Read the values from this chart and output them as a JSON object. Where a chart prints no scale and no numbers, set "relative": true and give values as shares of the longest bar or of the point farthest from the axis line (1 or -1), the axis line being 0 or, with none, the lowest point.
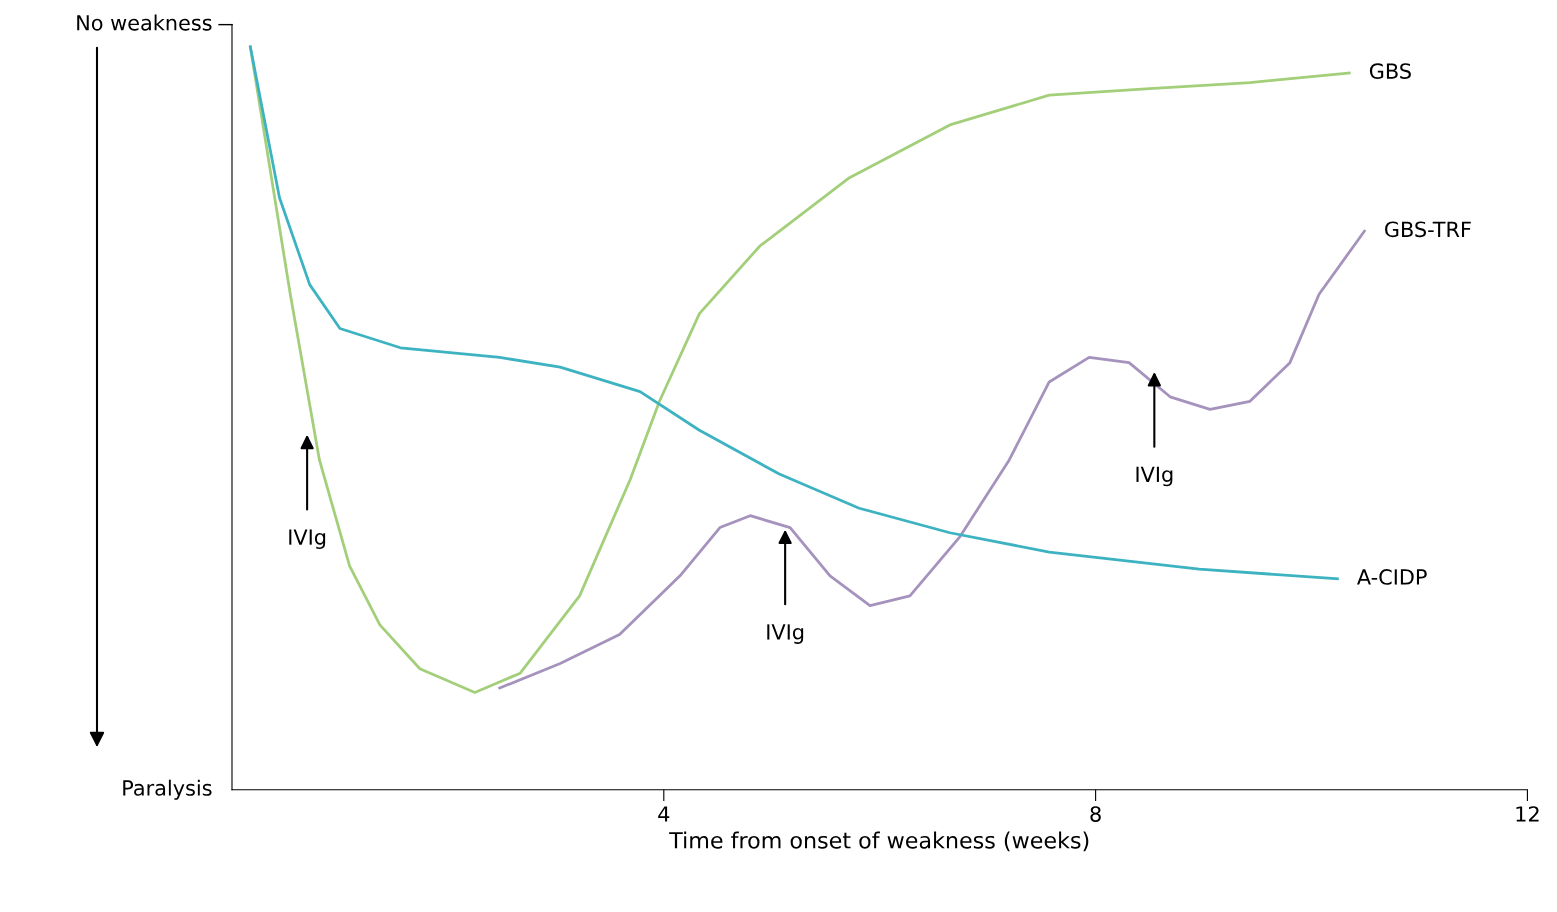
{
  "chart_data": {
    "type": "line",
    "xlabel": "Time from onset of weakness (weeks)",
    "xlim": [
      0,
      12
    ],
    "xticks": [
      4,
      8,
      12
    ],
    "relative": true,
    "grid": false,
    "legend": false,
    "marker": "none",
    "line_style": "solid",
    "series": [
      {
        "name": "GBS",
        "color": "#a3cf7a",
        "x": [
          0.17,
          0.54,
          0.81,
          1.09,
          1.37,
          1.74,
          2.25,
          2.67,
          3.22,
          3.69,
          3.96,
          4.33,
          4.89,
          5.72,
          6.65,
          7.57,
          8.5,
          9.43,
          10.35
        ],
        "values": [
          1.0,
          0.667,
          0.444,
          0.301,
          0.222,
          0.163,
          0.131,
          0.157,
          0.261,
          0.418,
          0.523,
          0.641,
          0.732,
          0.824,
          0.895,
          0.935,
          0.944,
          0.952,
          0.965
        ]
      },
      {
        "name": "GBS-TRF",
        "color": "#a592bd",
        "x": [
          2.48,
          3.04,
          3.59,
          4.15,
          4.52,
          4.8,
          5.17,
          5.54,
          5.91,
          6.28,
          6.74,
          7.2,
          7.57,
          7.94,
          8.31,
          8.69,
          9.06,
          9.43,
          9.8,
          10.07,
          10.49
        ],
        "values": [
          0.137,
          0.17,
          0.209,
          0.288,
          0.353,
          0.369,
          0.353,
          0.288,
          0.248,
          0.261,
          0.34,
          0.444,
          0.549,
          0.582,
          0.575,
          0.529,
          0.512,
          0.523,
          0.575,
          0.667,
          0.752
        ]
      },
      {
        "name": "A-CIDP",
        "color": "#3db3c2",
        "x": [
          0.17,
          0.44,
          0.72,
          1.0,
          1.56,
          2.48,
          3.04,
          3.78,
          4.33,
          5.07,
          5.81,
          6.65,
          7.57,
          8.96,
          10.24
        ],
        "values": [
          1.0,
          0.797,
          0.68,
          0.621,
          0.595,
          0.582,
          0.569,
          0.536,
          0.484,
          0.425,
          0.379,
          0.346,
          0.32,
          0.297,
          0.284
        ]
      }
    ],
    "annotations": [
      "No weakness",
      "Paralysis",
      "IVIg",
      "IVIg",
      "IVIg"
    ]
  }
}
